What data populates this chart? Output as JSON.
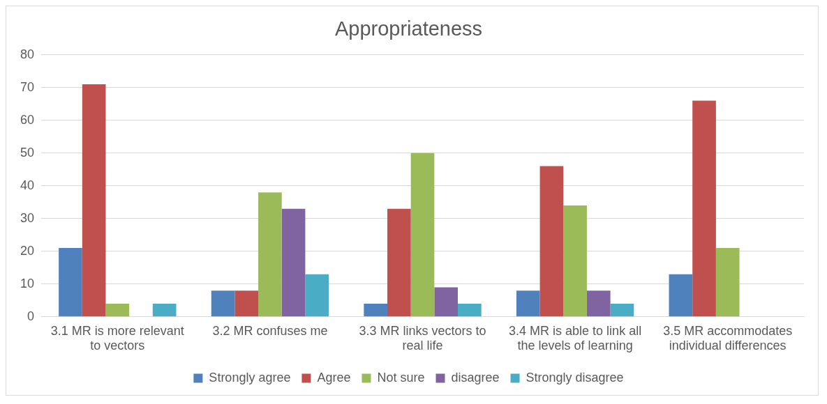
{
  "chart_data": {
    "type": "bar",
    "title": "Appropriateness",
    "categories": [
      "3.1 MR is more relevant to vectors",
      "3.2 MR confuses me",
      "3.3 MR links vectors to real life",
      "3.4 MR is able to link all the levels of learning",
      "3.5 MR accommodates individual differences"
    ],
    "series": [
      {
        "name": "Strongly agree",
        "color": "#4f81bd",
        "values": [
          21,
          8,
          4,
          8,
          13
        ]
      },
      {
        "name": "Agree",
        "color": "#c0504d",
        "values": [
          71,
          8,
          33,
          46,
          66
        ]
      },
      {
        "name": "Not sure",
        "color": "#9bbb59",
        "values": [
          4,
          38,
          50,
          34,
          21
        ]
      },
      {
        "name": "disagree",
        "color": "#8064a2",
        "values": [
          0,
          33,
          9,
          8,
          0
        ]
      },
      {
        "name": "Strongly disagree",
        "color": "#4bacc6",
        "values": [
          4,
          13,
          4,
          4,
          0
        ]
      }
    ],
    "ylim": [
      0,
      80
    ],
    "yticks": [
      0,
      10,
      20,
      30,
      40,
      50,
      60,
      70,
      80
    ],
    "grid": "y",
    "legend": "bottom"
  }
}
